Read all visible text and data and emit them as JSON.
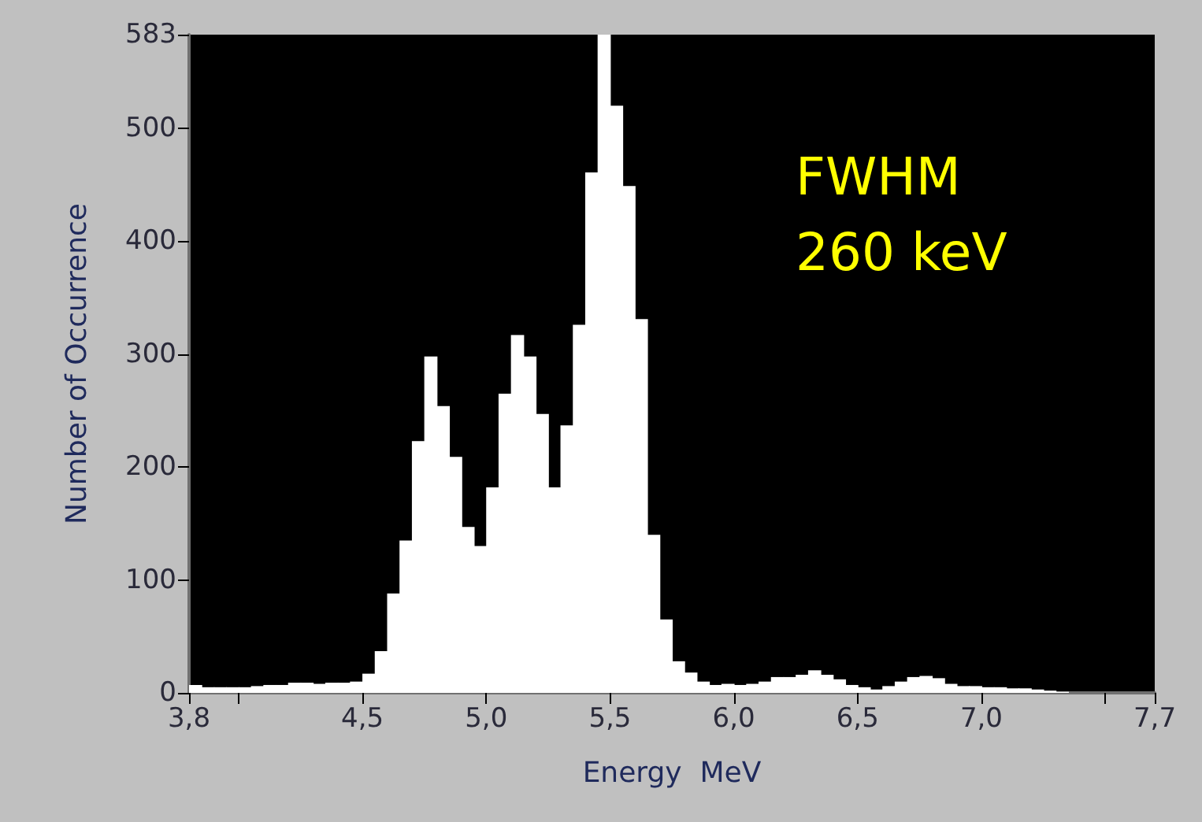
{
  "chart_data": {
    "type": "histogram",
    "xlabel": "Energy  MeV",
    "ylabel": "Number of Occurrence",
    "annotations": [
      "FWHM\n260 keV"
    ],
    "color": "#ffffff",
    "bins": [
      3.8,
      3.85,
      3.9,
      3.95,
      4.0,
      4.05,
      4.1,
      4.15,
      4.2,
      4.25,
      4.3,
      4.35,
      4.4,
      4.45,
      4.5,
      4.55,
      4.6,
      4.65,
      4.7,
      4.75,
      4.8,
      4.85,
      4.9,
      4.95,
      5.0,
      5.05,
      5.1,
      5.15,
      5.2,
      5.25,
      5.3,
      5.35,
      5.4,
      5.45,
      5.5,
      5.55,
      5.6,
      5.65,
      5.7,
      5.75,
      5.8,
      5.85,
      5.9,
      5.95,
      6.0,
      6.05,
      6.1,
      6.15,
      6.2,
      6.25,
      6.3,
      6.35,
      6.4,
      6.45,
      6.5,
      6.55,
      6.6,
      6.65,
      6.7,
      6.75,
      6.8,
      6.85,
      6.9,
      6.95,
      7.0,
      7.05,
      7.1,
      7.15,
      7.2,
      7.25,
      7.3,
      7.35,
      7.4,
      7.45,
      7.5,
      7.55,
      7.6,
      7.65,
      7.7
    ],
    "values": [
      7,
      5,
      5,
      5,
      5,
      6,
      7,
      7,
      9,
      9,
      8,
      9,
      9,
      10,
      17,
      37,
      88,
      135,
      223,
      298,
      254,
      209,
      147,
      130,
      182,
      265,
      317,
      298,
      247,
      182,
      237,
      326,
      461,
      583,
      520,
      449,
      331,
      140,
      65,
      28,
      18,
      10,
      7,
      8,
      7,
      8,
      10,
      14,
      14,
      16,
      20,
      16,
      12,
      7,
      5,
      3,
      6,
      10,
      14,
      15,
      13,
      8,
      6,
      6,
      5,
      5,
      4,
      4,
      3,
      2,
      1,
      0,
      0,
      0,
      0,
      0,
      0,
      0
    ],
    "xlim": [
      3.8,
      7.7
    ],
    "xticks": [
      {
        "value": 3.8,
        "label": "3,8"
      },
      {
        "value": 4.0,
        "label": null
      },
      {
        "value": 4.5,
        "label": "4,5"
      },
      {
        "value": 5.0,
        "label": "5,0"
      },
      {
        "value": 5.5,
        "label": "5,5"
      },
      {
        "value": 6.0,
        "label": "6,0"
      },
      {
        "value": 6.5,
        "label": "6,5"
      },
      {
        "value": 7.0,
        "label": "7,0"
      },
      {
        "value": 7.5,
        "label": null
      },
      {
        "value": 7.7,
        "label": "7,7"
      }
    ],
    "ylim": [
      0,
      583
    ],
    "yticks": [
      0,
      100,
      200,
      300,
      400,
      500,
      583
    ],
    "grid": false
  }
}
